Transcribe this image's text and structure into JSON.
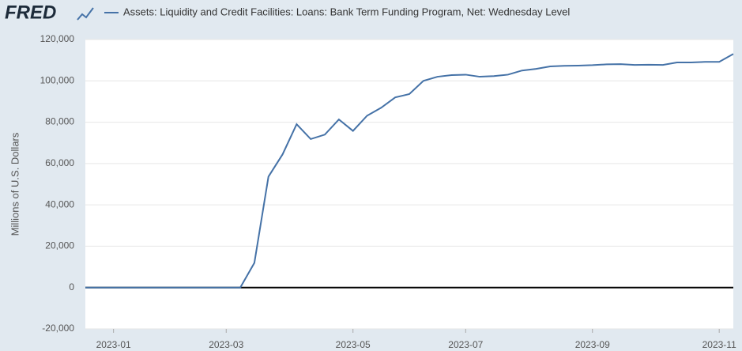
{
  "logo": "FRED",
  "chart_data": {
    "type": "line",
    "title": "Assets: Liquidity and Credit Facilities: Loans: Bank Term Funding Program, Net: Wednesday Level",
    "ylabel": "Millions of U.S. Dollars",
    "categories": [
      null,
      null,
      "2023-01",
      null,
      null,
      null,
      null,
      null,
      null,
      null,
      "2023-03",
      null,
      null,
      null,
      null,
      null,
      null,
      null,
      null,
      "2023-05",
      null,
      null,
      null,
      null,
      null,
      null,
      null,
      "2023-07",
      null,
      null,
      null,
      null,
      null,
      null,
      null,
      null,
      "2023-09",
      null,
      null,
      null,
      null,
      null,
      null,
      null,
      null,
      "2023-11",
      null
    ],
    "series": [
      {
        "name": "Assets: Liquidity and Credit Facilities: Loans: Bank Term Funding Program, Net: Wednesday Level",
        "color": "#4572a7",
        "values": [
          0,
          0,
          0,
          0,
          0,
          0,
          0,
          0,
          0,
          0,
          0,
          0,
          11943,
          53669,
          64403,
          79020,
          71837,
          73983,
          81342,
          75791,
          83134,
          87000,
          92000,
          93606,
          100000,
          102000,
          102800,
          103000,
          102000,
          102300,
          103000,
          105000,
          105800,
          107000,
          107300,
          107400,
          107600,
          108000,
          108100,
          107700,
          107800,
          107700,
          108900,
          108900,
          109200,
          109200,
          113000
        ]
      }
    ],
    "ylim": [
      -20000,
      120000
    ],
    "yticks": [
      {
        "value": -20000,
        "label": "-20,000"
      },
      0,
      {
        "value": 20000,
        "label": "20,000"
      },
      {
        "value": 40000,
        "label": "40,000"
      },
      {
        "value": 60000,
        "label": "60,000"
      },
      {
        "value": 80000,
        "label": "80,000"
      },
      {
        "value": 100000,
        "label": "100,000"
      },
      {
        "value": 120000,
        "label": "120,000"
      }
    ],
    "grid": true
  }
}
